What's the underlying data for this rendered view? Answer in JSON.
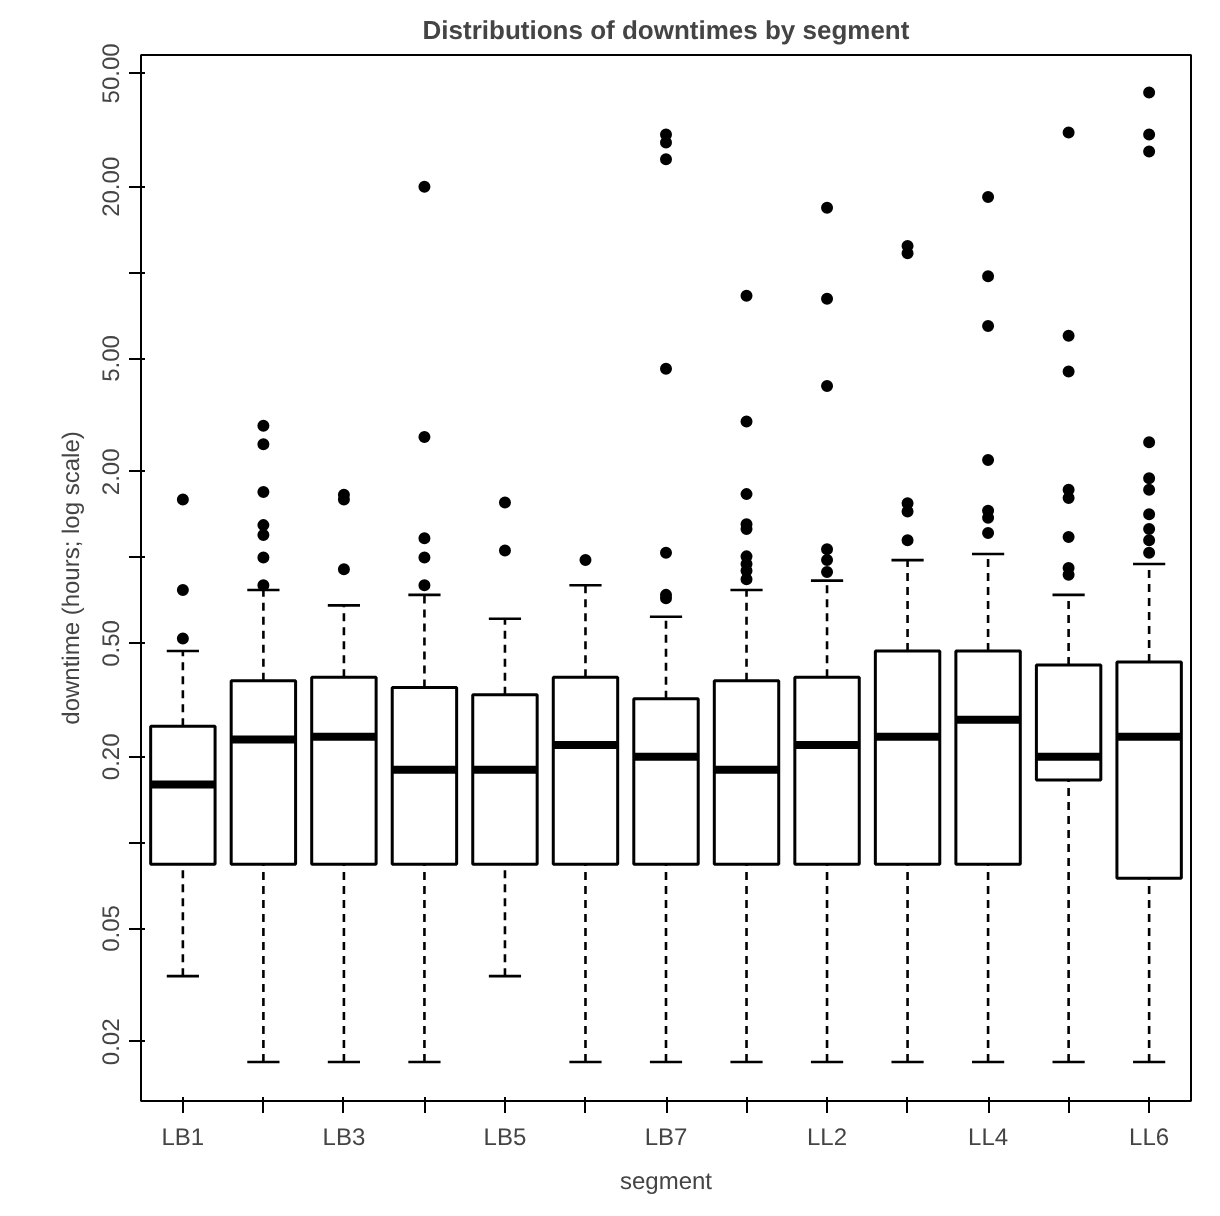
{
  "chart_data": {
    "type": "box",
    "title": "Distributions of downtimes by segment",
    "xlabel": "segment",
    "ylabel": "downtime (hours; log scale)",
    "log": "y",
    "color": "#000000",
    "grid": false,
    "categories": [
      "LB1",
      null,
      "LB3",
      null,
      "LB5",
      null,
      "LB7",
      null,
      "LL2",
      null,
      "LL4",
      null,
      "LL6"
    ],
    "ylim": [
      0.0124,
      58
    ],
    "yticks": [
      {
        "value": 0.02,
        "label": "0.02"
      },
      {
        "value": 0.05,
        "label": "0.05"
      },
      {
        "value": 0.1,
        "label": null
      },
      {
        "value": 0.2,
        "label": "0.20"
      },
      {
        "value": 0.5,
        "label": "0.50"
      },
      {
        "value": 1,
        "label": null
      },
      {
        "value": 2,
        "label": "2.00"
      },
      {
        "value": 5,
        "label": "5.00"
      },
      {
        "value": 10,
        "label": null
      },
      {
        "value": 20,
        "label": "20.00"
      },
      {
        "value": 50,
        "label": "50.00"
      }
    ],
    "boxes": [
      {
        "low": 0.034,
        "q1": 0.084,
        "median": 0.16,
        "q3": 0.256,
        "high": 0.47,
        "outliers": [
          0.52,
          0.77,
          1.6
        ]
      },
      {
        "low": 0.017,
        "q1": 0.084,
        "median": 0.23,
        "q3": 0.37,
        "high": 0.77,
        "outliers": [
          0.8,
          1.0,
          1.2,
          1.3,
          1.7,
          2.5,
          2.9
        ]
      },
      {
        "low": 0.017,
        "q1": 0.084,
        "median": 0.235,
        "q3": 0.38,
        "high": 0.68,
        "outliers": [
          0.91,
          1.6,
          1.66
        ]
      },
      {
        "low": 0.017,
        "q1": 0.084,
        "median": 0.18,
        "q3": 0.35,
        "high": 0.74,
        "outliers": [
          0.8,
          1.0,
          1.17,
          2.65,
          20
        ]
      },
      {
        "low": 0.034,
        "q1": 0.084,
        "median": 0.18,
        "q3": 0.33,
        "high": 0.61,
        "outliers": [
          1.06,
          1.56
        ]
      },
      {
        "low": 0.017,
        "q1": 0.084,
        "median": 0.22,
        "q3": 0.38,
        "high": 0.8,
        "outliers": [
          0.98
        ]
      },
      {
        "low": 0.017,
        "q1": 0.084,
        "median": 0.2,
        "q3": 0.32,
        "high": 0.62,
        "outliers": [
          0.72,
          0.74,
          1.04,
          4.6,
          25,
          28.6,
          30.5
        ]
      },
      {
        "low": 0.017,
        "q1": 0.084,
        "median": 0.18,
        "q3": 0.37,
        "high": 0.77,
        "outliers": [
          0.84,
          0.9,
          0.95,
          1.01,
          1.26,
          1.31,
          1.67,
          3.0,
          8.3
        ]
      },
      {
        "low": 0.017,
        "q1": 0.084,
        "median": 0.22,
        "q3": 0.38,
        "high": 0.83,
        "outliers": [
          0.89,
          0.98,
          1.07,
          4.0,
          8.1,
          16.9
        ]
      },
      {
        "low": 0.017,
        "q1": 0.084,
        "median": 0.235,
        "q3": 0.47,
        "high": 0.98,
        "outliers": [
          1.15,
          1.45,
          1.55,
          11.7,
          12.4
        ]
      },
      {
        "low": 0.017,
        "q1": 0.084,
        "median": 0.27,
        "q3": 0.47,
        "high": 1.03,
        "outliers": [
          1.22,
          1.38,
          1.46,
          2.2,
          6.5,
          9.7,
          18.4
        ]
      },
      {
        "low": 0.017,
        "q1": 0.166,
        "median": 0.2,
        "q3": 0.42,
        "high": 0.74,
        "outliers": [
          0.87,
          0.92,
          1.18,
          1.62,
          1.73,
          4.5,
          6.0,
          31
        ]
      },
      {
        "low": 0.017,
        "q1": 0.075,
        "median": 0.235,
        "q3": 0.43,
        "high": 0.95,
        "outliers": [
          1.04,
          1.15,
          1.26,
          1.42,
          1.73,
          1.9,
          2.54,
          26.6,
          30.5,
          42.8
        ]
      }
    ]
  }
}
